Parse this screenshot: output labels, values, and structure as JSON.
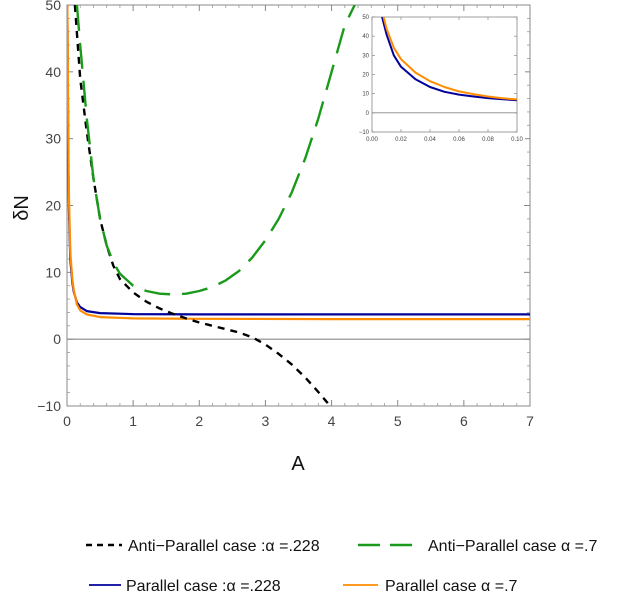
{
  "chart_data": {
    "type": "line",
    "xlabel": "A",
    "ylabel": "δN",
    "xlim": [
      0,
      7
    ],
    "ylim": [
      -10,
      50
    ],
    "x_ticks": [
      "0",
      "1",
      "2",
      "3",
      "4",
      "5",
      "6",
      "7"
    ],
    "y_ticks": [
      "−10",
      "0",
      "10",
      "20",
      "30",
      "40",
      "50"
    ],
    "series": [
      {
        "name": "Anti−Parallel case :α =.228",
        "color": "#000000",
        "dash": "short",
        "points": [
          [
            0.12,
            50
          ],
          [
            0.2,
            39
          ],
          [
            0.3,
            31
          ],
          [
            0.4,
            24
          ],
          [
            0.5,
            18
          ],
          [
            0.6,
            14
          ],
          [
            0.7,
            11
          ],
          [
            0.8,
            9
          ],
          [
            1.0,
            7
          ],
          [
            1.2,
            5.6
          ],
          [
            1.4,
            4.6
          ],
          [
            1.6,
            3.8
          ],
          [
            1.8,
            3.1
          ],
          [
            2.0,
            2.5
          ],
          [
            2.2,
            2.0
          ],
          [
            2.4,
            1.5
          ],
          [
            2.6,
            1.0
          ],
          [
            2.8,
            0.3
          ],
          [
            3.0,
            -0.8
          ],
          [
            3.2,
            -2.2
          ],
          [
            3.4,
            -3.8
          ],
          [
            3.6,
            -5.7
          ],
          [
            3.8,
            -7.9
          ],
          [
            3.98,
            -10
          ]
        ]
      },
      {
        "name": "Anti−Parallel case α =.7",
        "color": "#1a9a1a",
        "dash": "long",
        "points": [
          [
            0.15,
            50
          ],
          [
            0.2,
            44
          ],
          [
            0.3,
            33
          ],
          [
            0.4,
            24
          ],
          [
            0.5,
            18
          ],
          [
            0.6,
            14
          ],
          [
            0.7,
            11.5
          ],
          [
            0.8,
            9.8
          ],
          [
            1.0,
            8
          ],
          [
            1.2,
            7.2
          ],
          [
            1.4,
            6.8
          ],
          [
            1.6,
            6.7
          ],
          [
            1.8,
            6.8
          ],
          [
            2.0,
            7.2
          ],
          [
            2.2,
            7.8
          ],
          [
            2.4,
            8.8
          ],
          [
            2.6,
            10.2
          ],
          [
            2.8,
            12.2
          ],
          [
            3.0,
            14.8
          ],
          [
            3.2,
            18.0
          ],
          [
            3.4,
            22.0
          ],
          [
            3.6,
            27.0
          ],
          [
            3.8,
            33.0
          ],
          [
            4.0,
            40.0
          ],
          [
            4.2,
            47.0
          ],
          [
            4.35,
            50
          ]
        ]
      },
      {
        "name": "Parallel case :α =.228",
        "color": "#00009b",
        "dash": "solid",
        "points": [
          [
            0.005,
            50
          ],
          [
            0.01,
            42
          ],
          [
            0.02,
            26
          ],
          [
            0.03,
            19
          ],
          [
            0.05,
            12
          ],
          [
            0.08,
            8.5
          ],
          [
            0.1,
            7.2
          ],
          [
            0.15,
            5.5
          ],
          [
            0.2,
            4.8
          ],
          [
            0.3,
            4.2
          ],
          [
            0.5,
            3.9
          ],
          [
            1.0,
            3.75
          ],
          [
            2.0,
            3.7
          ],
          [
            4.0,
            3.7
          ],
          [
            7.0,
            3.7
          ]
        ]
      },
      {
        "name": "Parallel case α =.7",
        "color": "#ff8c00",
        "dash": "solid",
        "points": [
          [
            0.005,
            50
          ],
          [
            0.01,
            45
          ],
          [
            0.02,
            30
          ],
          [
            0.03,
            21
          ],
          [
            0.05,
            13
          ],
          [
            0.08,
            9
          ],
          [
            0.1,
            7.5
          ],
          [
            0.15,
            5.2
          ],
          [
            0.2,
            4.3
          ],
          [
            0.3,
            3.7
          ],
          [
            0.5,
            3.3
          ],
          [
            1.0,
            3.1
          ],
          [
            2.0,
            3.05
          ],
          [
            4.0,
            3.0
          ],
          [
            7.0,
            3.0
          ]
        ]
      }
    ],
    "inset": {
      "xlim": [
        0,
        0.1
      ],
      "ylim": [
        -10,
        50
      ],
      "x_ticks": [
        "0.00",
        "0.02",
        "0.04",
        "0.06",
        "0.08",
        "0.10"
      ],
      "y_ticks": [
        "−10",
        "0",
        "10",
        "20",
        "30",
        "40",
        "50"
      ],
      "series": [
        {
          "color": "#00009b",
          "points": [
            [
              0.007,
              50
            ],
            [
              0.01,
              41
            ],
            [
              0.015,
              30
            ],
            [
              0.02,
              24
            ],
            [
              0.03,
              17.5
            ],
            [
              0.04,
              13.5
            ],
            [
              0.05,
              11
            ],
            [
              0.06,
              9.5
            ],
            [
              0.07,
              8.5
            ],
            [
              0.08,
              7.7
            ],
            [
              0.09,
              7.1
            ],
            [
              0.1,
              6.6
            ]
          ]
        },
        {
          "color": "#ff8c00",
          "points": [
            [
              0.008,
              50
            ],
            [
              0.01,
              44
            ],
            [
              0.015,
              34
            ],
            [
              0.02,
              28
            ],
            [
              0.03,
              21
            ],
            [
              0.04,
              16.5
            ],
            [
              0.05,
              13.5
            ],
            [
              0.06,
              11.2
            ],
            [
              0.07,
              9.7
            ],
            [
              0.08,
              8.5
            ],
            [
              0.09,
              7.6
            ],
            [
              0.1,
              7.0
            ]
          ]
        }
      ]
    }
  }
}
